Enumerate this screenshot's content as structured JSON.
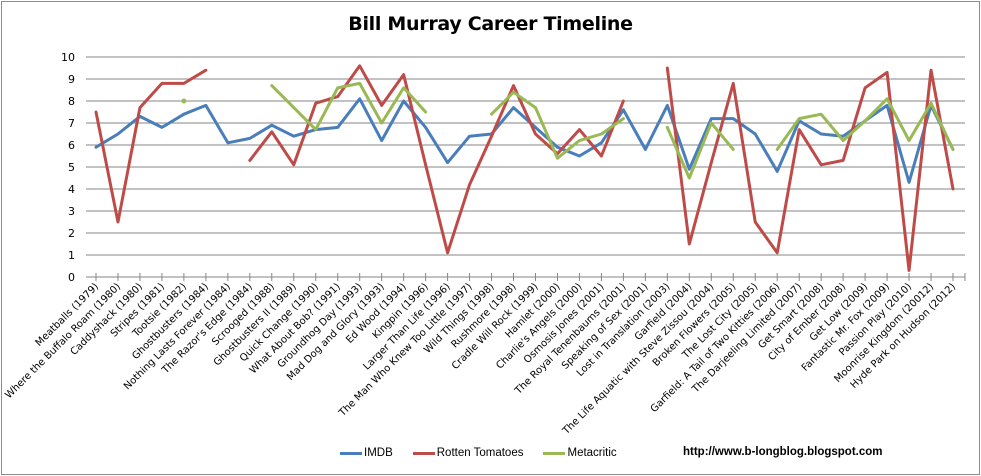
{
  "chart_data": {
    "type": "line",
    "title": "Bill Murray Career Timeline",
    "xlabel": "",
    "ylabel": "",
    "ylim": [
      0,
      10
    ],
    "yticks": [
      0,
      1,
      2,
      3,
      4,
      5,
      6,
      7,
      8,
      9,
      10
    ],
    "grid": true,
    "legend_position": "bottom",
    "categories": [
      "Meatballs (1979)",
      "Where the Buffalo Roam (1980)",
      "Caddyshack (1980)",
      "Stripes (1981)",
      "Tootsie (1982)",
      "Ghostbusters (1984)",
      "Nothing Lasts Forever (1984)",
      "The Razor's Edge (1984)",
      "Scrooged (1988)",
      "Ghostbusters II (1989)",
      "Quick Change (1990)",
      "What About Bob? (1991)",
      "Groundhog Day (1993)",
      "Mad Dog and Glory (1993)",
      "Ed Wood (1994)",
      "Kingpin (1996)",
      "Larger Than Life (1996)",
      "The Man Who Knew Too Little (1997)",
      "Wild Things (1998)",
      "Rushmore (1998)",
      "Cradle Will Rock (1999)",
      "Hamlet (2000)",
      "Charlie's Angels (2000)",
      "Osmosis Jones (2001)",
      "The Royal Tenenbaums (2001)",
      "Speaking of Sex (2001)",
      "Lost in Translation (2003)",
      "Garfield (2004)",
      "The Life Aquatic with Steve Zissou (2004)",
      "Broken Flowers (2005)",
      "The Lost City (2005)",
      "Garfield: A Tail of Two Kitties (2006)",
      "The Darjeeling Limited (2007)",
      "Get Smart (2008)",
      "City of Ember (2008)",
      "Get Low (2009)",
      "Fantastic Mr. Fox (2009)",
      "Passion Play (2010)",
      "Moonrise Kingdom (20012)",
      "Hyde Park on Hudson (2012)"
    ],
    "series": [
      {
        "name": "IMDB",
        "color": "#4a7ebb",
        "values": [
          5.9,
          6.5,
          7.3,
          6.8,
          7.4,
          7.8,
          6.1,
          6.3,
          6.9,
          6.4,
          6.7,
          6.8,
          8.1,
          6.2,
          8.0,
          6.8,
          5.2,
          6.4,
          6.5,
          7.7,
          6.8,
          5.9,
          5.5,
          6.1,
          7.6,
          5.8,
          7.8,
          4.9,
          7.2,
          7.2,
          6.5,
          4.8,
          7.1,
          6.5,
          6.4,
          7.1,
          7.8,
          4.3,
          7.8,
          5.8
        ]
      },
      {
        "name": "Rotten Tomatoes",
        "color": "#be4b48",
        "values": [
          7.5,
          2.5,
          7.7,
          8.8,
          8.8,
          9.4,
          null,
          5.3,
          6.6,
          5.1,
          7.9,
          8.2,
          9.6,
          7.8,
          9.2,
          5.1,
          1.1,
          4.2,
          6.4,
          8.7,
          6.5,
          5.6,
          6.7,
          5.5,
          8.0,
          null,
          9.5,
          1.5,
          5.2,
          8.8,
          2.5,
          1.1,
          6.7,
          5.1,
          5.3,
          8.6,
          9.3,
          0.3,
          9.4,
          4.0
        ]
      },
      {
        "name": "Metacritic",
        "color": "#98b954",
        "values": [
          null,
          null,
          null,
          null,
          8.0,
          null,
          null,
          null,
          8.7,
          7.7,
          6.7,
          8.6,
          8.8,
          7.0,
          8.6,
          7.5,
          null,
          null,
          7.4,
          8.4,
          7.7,
          5.4,
          6.2,
          6.5,
          7.2,
          null,
          6.8,
          4.5,
          7.0,
          5.8,
          null,
          5.8,
          7.2,
          7.4,
          6.2,
          7.1,
          8.1,
          6.2,
          7.9,
          5.8
        ]
      }
    ]
  },
  "legend": {
    "items": [
      {
        "label": "IMDB",
        "color": "#4a7ebb"
      },
      {
        "label": "Rotten Tomatoes",
        "color": "#be4b48"
      },
      {
        "label": "Metacritic",
        "color": "#98b954"
      }
    ]
  },
  "credit": "http://www.b-longblog.blogspot.com"
}
